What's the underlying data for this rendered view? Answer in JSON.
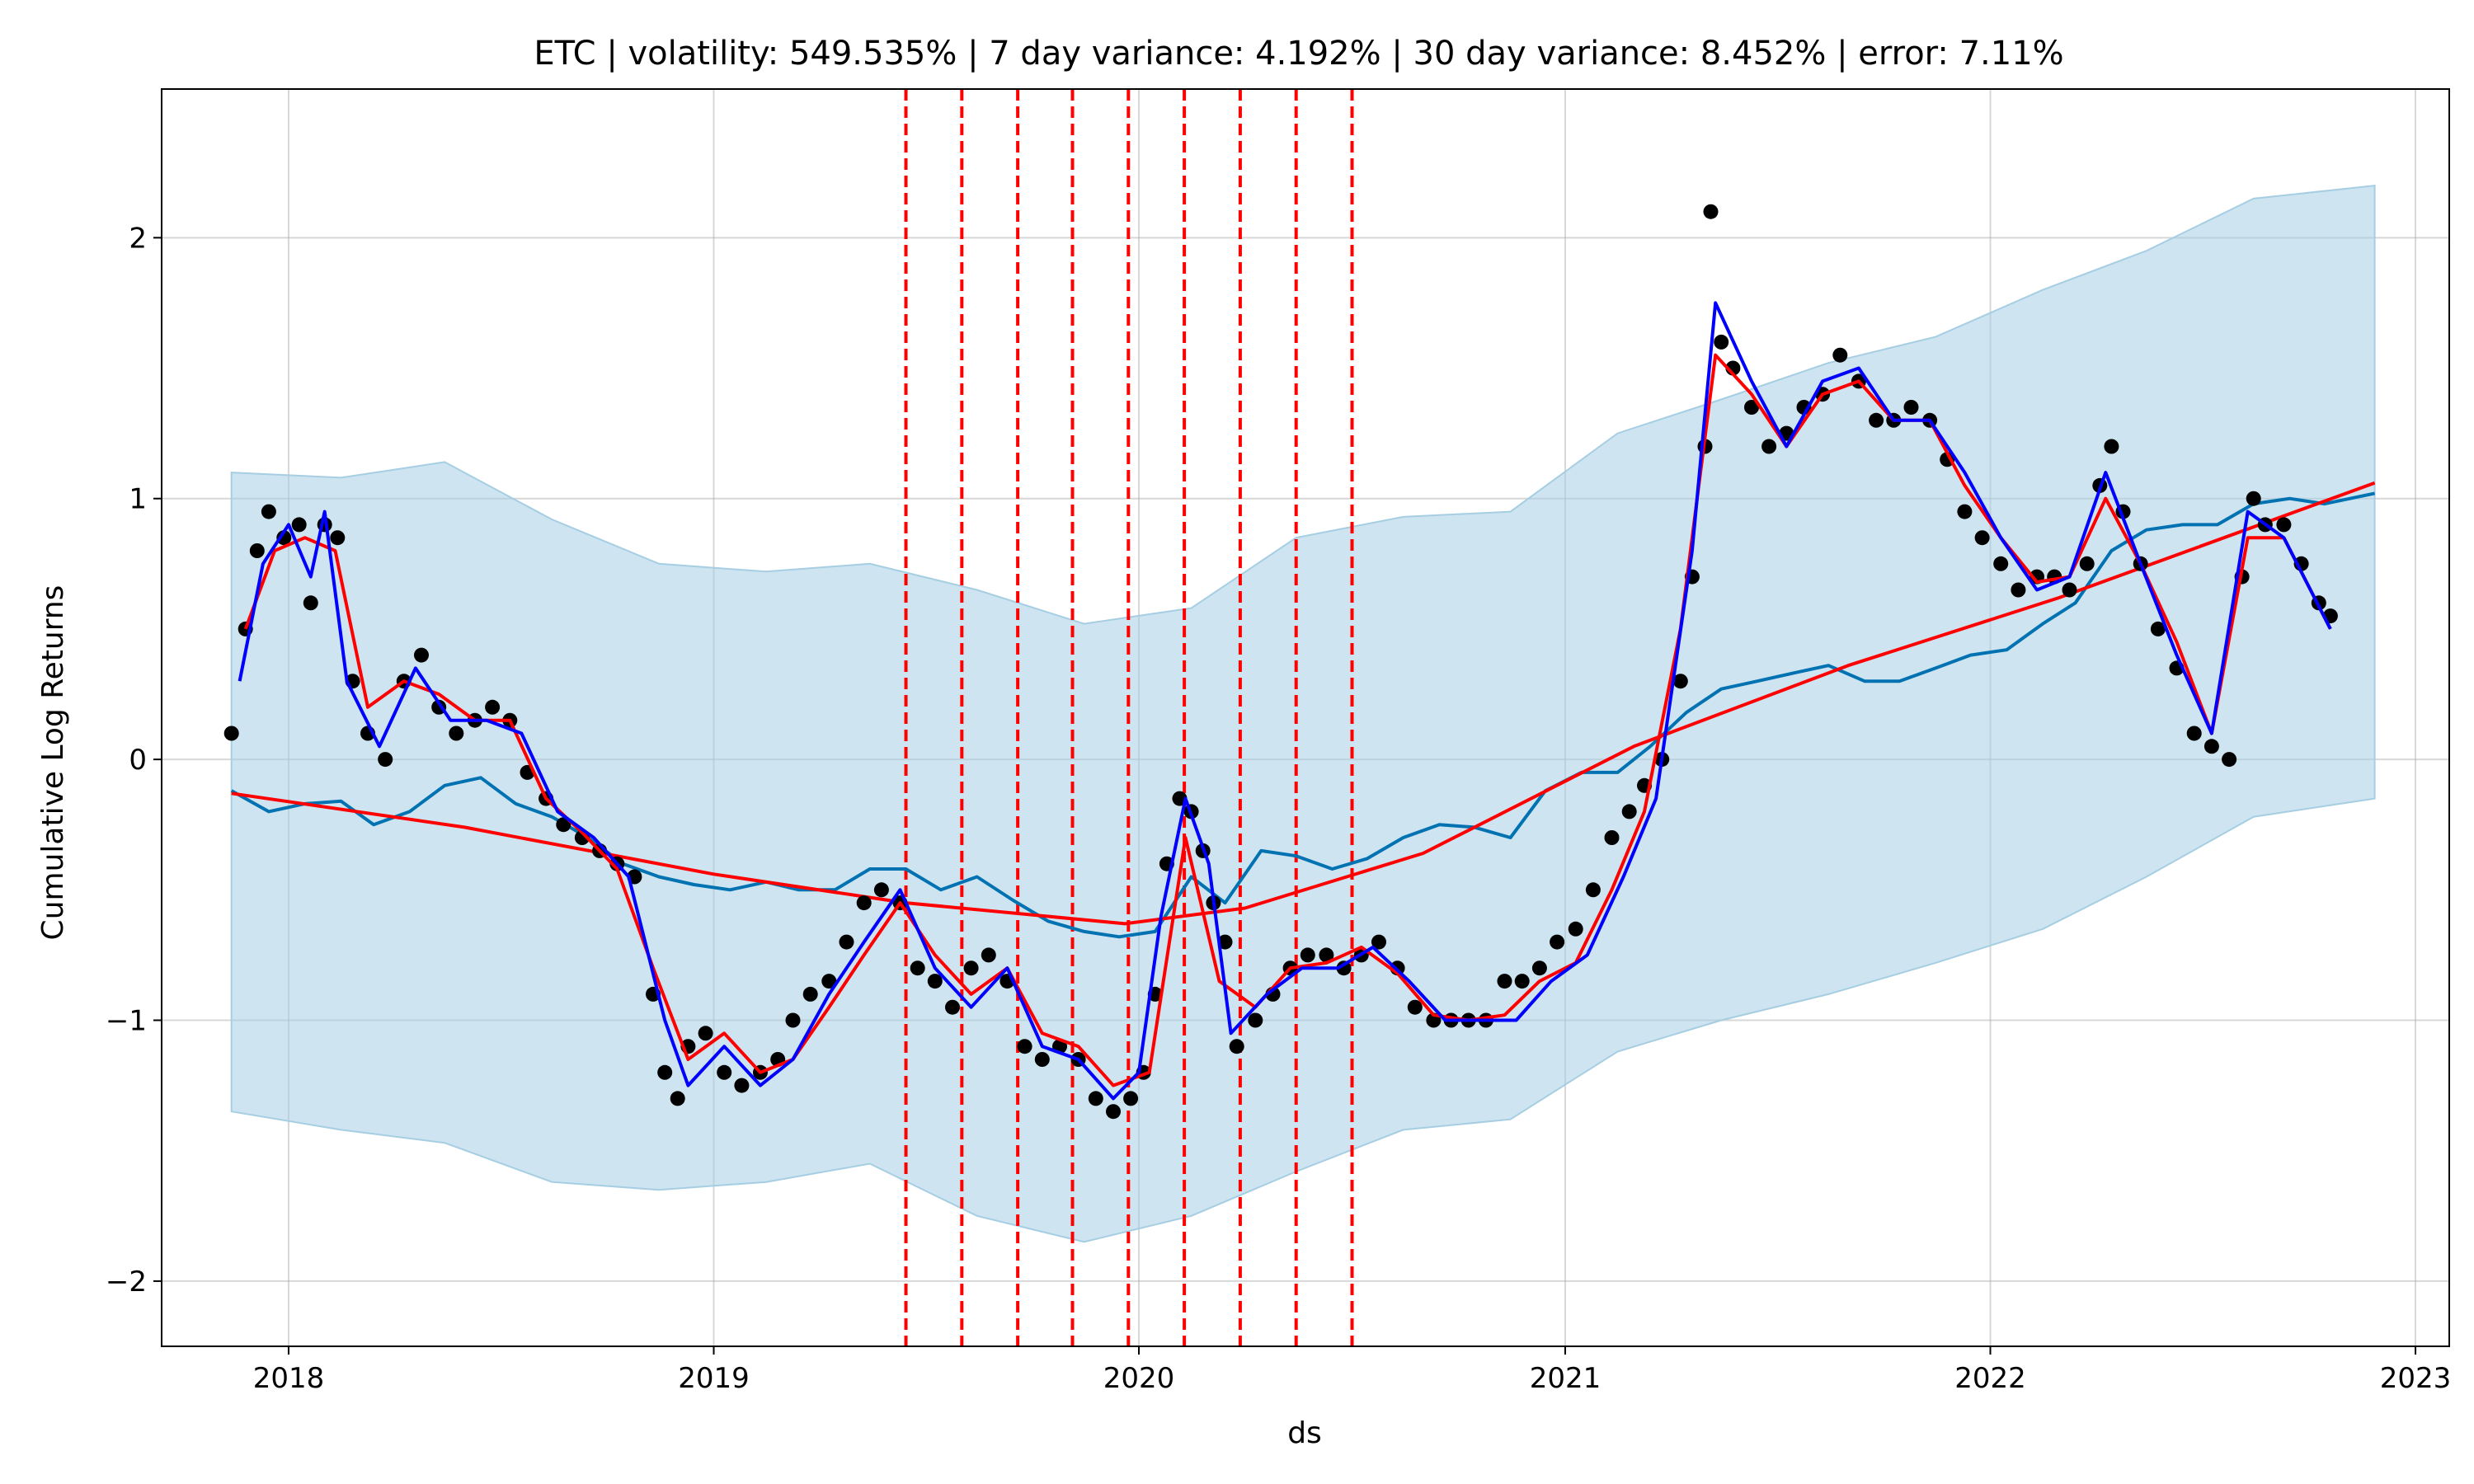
{
  "chart_data": {
    "type": "line",
    "title": "ETC | volatility: 549.535% | 7 day variance: 4.192% | 30 day variance: 8.452% | error: 7.11%",
    "xlabel": "ds",
    "ylabel": "Cumulative Log Returns",
    "xlim": [
      "2017-09-14",
      "2023-01-30"
    ],
    "ylim": [
      -2.25,
      2.57
    ],
    "x_ticks": [
      "2018",
      "2019",
      "2020",
      "2021",
      "2022",
      "2023"
    ],
    "y_ticks": [
      -2,
      -1,
      0,
      1,
      2
    ],
    "y_tick_labels": [
      "−2",
      "−1",
      "0",
      "1",
      "2"
    ],
    "grid": true,
    "colors": {
      "observed": "#000000",
      "forecast": "#0072b2",
      "uncertainty_band": "#a6cee3",
      "trend": "#ff0000",
      "changepoints": "#ff0000",
      "smooth_fast": "#0000ff",
      "smooth_slow": "#ff0000"
    },
    "changepoints": [
      "2019-06-15",
      "2019-08-02",
      "2019-09-19",
      "2019-11-05",
      "2019-12-23",
      "2020-02-09",
      "2020-03-28",
      "2020-05-15",
      "2020-07-02"
    ],
    "trend": {
      "x": [
        "2017-11-13",
        "2018-06-01",
        "2019-01-01",
        "2019-06-15",
        "2019-12-20",
        "2020-04-01",
        "2020-09-01",
        "2021-03-01",
        "2021-09-01",
        "2022-03-01",
        "2022-11-27"
      ],
      "y": [
        -0.13,
        -0.26,
        -0.44,
        -0.55,
        -0.63,
        -0.57,
        -0.36,
        0.05,
        0.36,
        0.62,
        1.06
      ]
    },
    "forecast": {
      "x": [
        "2017-11-13",
        "2017-12-15",
        "2018-01-15",
        "2018-02-15",
        "2018-03-15",
        "2018-04-15",
        "2018-05-15",
        "2018-06-15",
        "2018-07-15",
        "2018-08-15",
        "2018-09-15",
        "2018-10-15",
        "2018-11-15",
        "2018-12-15",
        "2019-01-15",
        "2019-02-15",
        "2019-03-15",
        "2019-04-15",
        "2019-05-15",
        "2019-06-15",
        "2019-07-15",
        "2019-08-15",
        "2019-09-15",
        "2019-10-15",
        "2019-11-15",
        "2019-12-15",
        "2020-01-15",
        "2020-02-15",
        "2020-03-15",
        "2020-04-15",
        "2020-05-15",
        "2020-06-15",
        "2020-07-15",
        "2020-08-15",
        "2020-09-15",
        "2020-10-15",
        "2020-11-15",
        "2020-12-15",
        "2021-01-15",
        "2021-02-15",
        "2021-03-15",
        "2021-04-15",
        "2021-05-15",
        "2021-06-15",
        "2021-07-15",
        "2021-08-15",
        "2021-09-15",
        "2021-10-15",
        "2021-11-15",
        "2021-12-15",
        "2022-01-15",
        "2022-02-15",
        "2022-03-15",
        "2022-04-15",
        "2022-05-15",
        "2022-06-15",
        "2022-07-15",
        "2022-08-15",
        "2022-09-15",
        "2022-10-15",
        "2022-11-27"
      ],
      "y": [
        -0.12,
        -0.2,
        -0.17,
        -0.16,
        -0.25,
        -0.2,
        -0.1,
        -0.07,
        -0.17,
        -0.22,
        -0.3,
        -0.4,
        -0.45,
        -0.48,
        -0.5,
        -0.47,
        -0.5,
        -0.5,
        -0.42,
        -0.42,
        -0.5,
        -0.45,
        -0.54,
        -0.62,
        -0.66,
        -0.68,
        -0.66,
        -0.45,
        -0.55,
        -0.35,
        -0.37,
        -0.42,
        -0.38,
        -0.3,
        -0.25,
        -0.26,
        -0.3,
        -0.12,
        -0.05,
        -0.05,
        0.05,
        0.18,
        0.27,
        0.3,
        0.33,
        0.36,
        0.3,
        0.3,
        0.35,
        0.4,
        0.42,
        0.52,
        0.6,
        0.8,
        0.88,
        0.9,
        0.9,
        0.98,
        1.0,
        0.98,
        1.02
      ]
    },
    "uncertainty_band": {
      "x": [
        "2017-11-13",
        "2018-02-15",
        "2018-05-15",
        "2018-08-15",
        "2018-11-15",
        "2019-02-15",
        "2019-05-15",
        "2019-08-15",
        "2019-11-15",
        "2020-02-15",
        "2020-05-15",
        "2020-08-15",
        "2020-11-15",
        "2021-02-15",
        "2021-05-15",
        "2021-08-15",
        "2021-11-15",
        "2022-02-15",
        "2022-05-15",
        "2022-08-15",
        "2022-11-27"
      ],
      "upper": [
        1.1,
        1.08,
        1.14,
        0.92,
        0.75,
        0.72,
        0.75,
        0.65,
        0.52,
        0.58,
        0.85,
        0.93,
        0.95,
        1.25,
        1.38,
        1.52,
        1.62,
        1.8,
        1.95,
        2.15,
        2.2
      ],
      "lower": [
        -1.35,
        -1.42,
        -1.47,
        -1.62,
        -1.65,
        -1.62,
        -1.55,
        -1.75,
        -1.85,
        -1.75,
        -1.58,
        -1.42,
        -1.38,
        -1.12,
        -1.0,
        -0.9,
        -0.78,
        -0.65,
        -0.45,
        -0.22,
        -0.15
      ]
    },
    "observed": {
      "x": [
        "2017-11-13",
        "2017-11-25",
        "2017-12-05",
        "2017-12-15",
        "2017-12-28",
        "2018-01-10",
        "2018-01-20",
        "2018-02-01",
        "2018-02-12",
        "2018-02-25",
        "2018-03-10",
        "2018-03-25",
        "2018-04-10",
        "2018-04-25",
        "2018-05-10",
        "2018-05-25",
        "2018-06-10",
        "2018-06-25",
        "2018-07-10",
        "2018-07-25",
        "2018-08-10",
        "2018-08-25",
        "2018-09-10",
        "2018-09-25",
        "2018-10-10",
        "2018-10-25",
        "2018-11-10",
        "2018-11-20",
        "2018-12-01",
        "2018-12-10",
        "2018-12-25",
        "2019-01-10",
        "2019-01-25",
        "2019-02-10",
        "2019-02-25",
        "2019-03-10",
        "2019-03-25",
        "2019-04-10",
        "2019-04-25",
        "2019-05-10",
        "2019-05-25",
        "2019-06-10",
        "2019-06-25",
        "2019-07-10",
        "2019-07-25",
        "2019-08-10",
        "2019-08-25",
        "2019-09-10",
        "2019-09-25",
        "2019-10-10",
        "2019-10-25",
        "2019-11-10",
        "2019-11-25",
        "2019-12-10",
        "2019-12-25",
        "2020-01-05",
        "2020-01-15",
        "2020-01-25",
        "2020-02-05",
        "2020-02-15",
        "2020-02-25",
        "2020-03-05",
        "2020-03-15",
        "2020-03-25",
        "2020-04-10",
        "2020-04-25",
        "2020-05-10",
        "2020-05-25",
        "2020-06-10",
        "2020-06-25",
        "2020-07-10",
        "2020-07-25",
        "2020-08-10",
        "2020-08-25",
        "2020-09-10",
        "2020-09-25",
        "2020-10-10",
        "2020-10-25",
        "2020-11-10",
        "2020-11-25",
        "2020-12-10",
        "2020-12-25",
        "2021-01-10",
        "2021-01-25",
        "2021-02-10",
        "2021-02-25",
        "2021-03-10",
        "2021-03-25",
        "2021-04-10",
        "2021-04-20",
        "2021-05-01",
        "2021-05-06",
        "2021-05-15",
        "2021-05-25",
        "2021-06-10",
        "2021-06-25",
        "2021-07-10",
        "2021-07-25",
        "2021-08-10",
        "2021-08-25",
        "2021-09-10",
        "2021-09-25",
        "2021-10-10",
        "2021-10-25",
        "2021-11-10",
        "2021-11-25",
        "2021-12-10",
        "2021-12-25",
        "2022-01-10",
        "2022-01-25",
        "2022-02-10",
        "2022-02-25",
        "2022-03-10",
        "2022-03-25",
        "2022-04-05",
        "2022-04-15",
        "2022-04-25",
        "2022-05-10",
        "2022-05-25",
        "2022-06-10",
        "2022-06-25",
        "2022-07-10",
        "2022-07-25",
        "2022-08-05",
        "2022-08-15",
        "2022-08-25",
        "2022-09-10",
        "2022-09-25",
        "2022-10-10",
        "2022-10-20"
      ],
      "y": [
        0.1,
        0.5,
        0.8,
        0.95,
        0.85,
        0.9,
        0.6,
        0.9,
        0.85,
        0.3,
        0.1,
        0.0,
        0.3,
        0.4,
        0.2,
        0.1,
        0.15,
        0.2,
        0.15,
        -0.05,
        -0.15,
        -0.25,
        -0.3,
        -0.35,
        -0.4,
        -0.45,
        -0.9,
        -1.2,
        -1.3,
        -1.1,
        -1.05,
        -1.2,
        -1.25,
        -1.2,
        -1.15,
        -1.0,
        -0.9,
        -0.85,
        -0.7,
        -0.55,
        -0.5,
        -0.55,
        -0.8,
        -0.85,
        -0.95,
        -0.8,
        -0.75,
        -0.85,
        -1.1,
        -1.15,
        -1.1,
        -1.15,
        -1.3,
        -1.35,
        -1.3,
        -1.2,
        -0.9,
        -0.4,
        -0.15,
        -0.2,
        -0.35,
        -0.55,
        -0.7,
        -1.1,
        -1.0,
        -0.9,
        -0.8,
        -0.75,
        -0.75,
        -0.8,
        -0.75,
        -0.7,
        -0.8,
        -0.95,
        -1.0,
        -1.0,
        -1.0,
        -1.0,
        -0.85,
        -0.85,
        -0.8,
        -0.7,
        -0.65,
        -0.5,
        -0.3,
        -0.2,
        -0.1,
        0.0,
        0.3,
        0.7,
        1.2,
        2.1,
        1.6,
        1.5,
        1.35,
        1.2,
        1.25,
        1.35,
        1.4,
        1.55,
        1.45,
        1.3,
        1.3,
        1.35,
        1.3,
        1.15,
        0.95,
        0.85,
        0.75,
        0.65,
        0.7,
        0.7,
        0.65,
        0.75,
        1.05,
        1.2,
        0.95,
        0.75,
        0.5,
        0.35,
        0.1,
        0.05,
        0.0,
        0.7,
        1.0,
        0.9,
        0.9,
        0.75,
        0.6,
        0.55
      ]
    },
    "smooth_fast": {
      "x": [
        "2017-11-20",
        "2017-12-10",
        "2018-01-01",
        "2018-01-20",
        "2018-02-01",
        "2018-02-20",
        "2018-03-20",
        "2018-04-20",
        "2018-05-20",
        "2018-06-20",
        "2018-07-20",
        "2018-08-20",
        "2018-09-20",
        "2018-10-20",
        "2018-11-20",
        "2018-12-10",
        "2019-01-10",
        "2019-02-10",
        "2019-03-10",
        "2019-04-10",
        "2019-05-10",
        "2019-06-10",
        "2019-07-10",
        "2019-08-10",
        "2019-09-10",
        "2019-10-10",
        "2019-11-10",
        "2019-12-10",
        "2020-01-01",
        "2020-01-20",
        "2020-02-10",
        "2020-03-01",
        "2020-03-20",
        "2020-04-20",
        "2020-05-20",
        "2020-06-20",
        "2020-07-20",
        "2020-08-20",
        "2020-09-20",
        "2020-10-20",
        "2020-11-20",
        "2020-12-20",
        "2021-01-20",
        "2021-02-20",
        "2021-03-20",
        "2021-04-20",
        "2021-05-10",
        "2021-06-10",
        "2021-07-10",
        "2021-08-10",
        "2021-09-10",
        "2021-10-10",
        "2021-11-10",
        "2021-12-10",
        "2022-01-10",
        "2022-02-10",
        "2022-03-10",
        "2022-04-10",
        "2022-05-10",
        "2022-06-10",
        "2022-07-10",
        "2022-08-10",
        "2022-09-10",
        "2022-10-20"
      ],
      "y": [
        0.3,
        0.75,
        0.9,
        0.7,
        0.95,
        0.3,
        0.05,
        0.35,
        0.15,
        0.15,
        0.1,
        -0.2,
        -0.3,
        -0.45,
        -1.0,
        -1.25,
        -1.1,
        -1.25,
        -1.15,
        -0.9,
        -0.7,
        -0.5,
        -0.8,
        -0.95,
        -0.8,
        -1.1,
        -1.15,
        -1.3,
        -1.2,
        -0.6,
        -0.15,
        -0.4,
        -1.05,
        -0.9,
        -0.8,
        -0.8,
        -0.72,
        -0.85,
        -1.0,
        -1.0,
        -1.0,
        -0.85,
        -0.75,
        -0.45,
        -0.15,
        0.8,
        1.75,
        1.45,
        1.2,
        1.45,
        1.5,
        1.3,
        1.3,
        1.1,
        0.85,
        0.65,
        0.7,
        1.1,
        0.75,
        0.4,
        0.1,
        0.95,
        0.85,
        0.5
      ]
    },
    "smooth_slow": {
      "x": [
        "2017-11-25",
        "2017-12-20",
        "2018-01-15",
        "2018-02-10",
        "2018-03-10",
        "2018-04-10",
        "2018-05-10",
        "2018-06-10",
        "2018-07-10",
        "2018-08-10",
        "2018-09-10",
        "2018-10-10",
        "2018-11-10",
        "2018-12-10",
        "2019-01-10",
        "2019-02-10",
        "2019-03-10",
        "2019-04-10",
        "2019-05-10",
        "2019-06-10",
        "2019-07-10",
        "2019-08-10",
        "2019-09-10",
        "2019-10-10",
        "2019-11-10",
        "2019-12-10",
        "2020-01-10",
        "2020-02-10",
        "2020-03-10",
        "2020-04-10",
        "2020-05-10",
        "2020-06-10",
        "2020-07-10",
        "2020-08-10",
        "2020-09-10",
        "2020-10-10",
        "2020-11-10",
        "2020-12-10",
        "2021-01-10",
        "2021-02-10",
        "2021-03-10",
        "2021-04-10",
        "2021-05-10",
        "2021-06-10",
        "2021-07-10",
        "2021-08-10",
        "2021-09-10",
        "2021-10-10",
        "2021-11-10",
        "2021-12-10",
        "2022-01-10",
        "2022-02-10",
        "2022-03-10",
        "2022-04-10",
        "2022-05-10",
        "2022-06-10",
        "2022-07-10",
        "2022-08-10",
        "2022-09-10",
        "2022-10-20"
      ],
      "y": [
        0.5,
        0.8,
        0.85,
        0.8,
        0.2,
        0.3,
        0.25,
        0.15,
        0.15,
        -0.15,
        -0.28,
        -0.42,
        -0.8,
        -1.15,
        -1.05,
        -1.2,
        -1.15,
        -0.95,
        -0.75,
        -0.55,
        -0.75,
        -0.9,
        -0.8,
        -1.05,
        -1.1,
        -1.25,
        -1.2,
        -0.3,
        -0.85,
        -0.95,
        -0.8,
        -0.78,
        -0.72,
        -0.82,
        -0.98,
        -1.0,
        -0.98,
        -0.85,
        -0.78,
        -0.5,
        -0.2,
        0.5,
        1.55,
        1.4,
        1.2,
        1.4,
        1.45,
        1.3,
        1.3,
        1.05,
        0.85,
        0.68,
        0.7,
        1.0,
        0.75,
        0.45,
        0.1,
        0.85,
        0.85,
        0.5
      ]
    }
  }
}
